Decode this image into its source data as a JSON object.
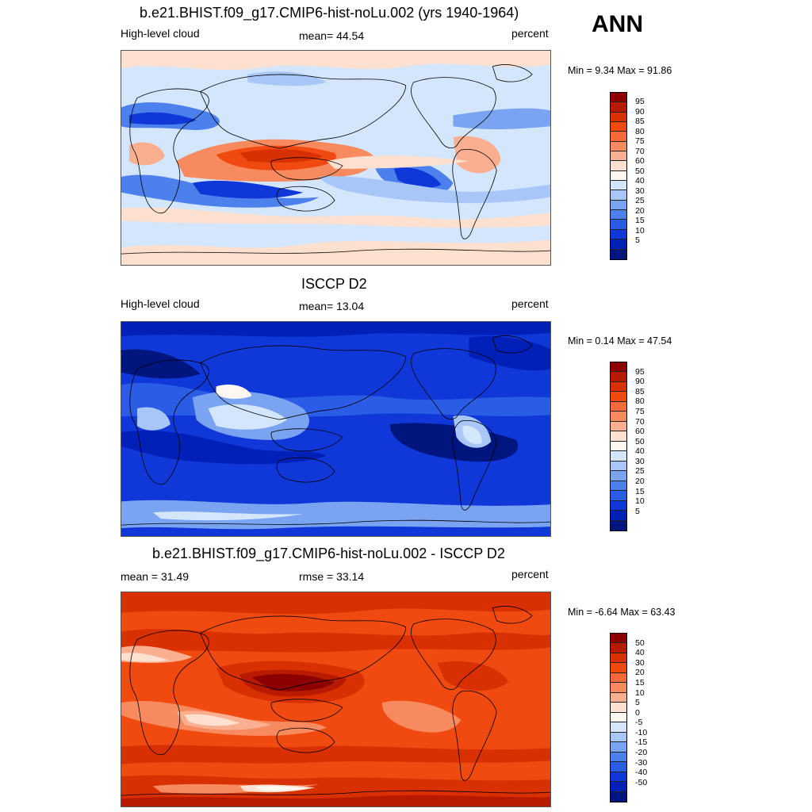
{
  "season": "ANN",
  "panels": [
    {
      "title": "b.e21.BHIST.f09_g17.CMIP6-hist-noLu.002 (yrs 1940-1964)",
      "left": "High-level cloud",
      "center": "mean=  44.54",
      "right": "percent",
      "minmax": "Min =   9.34 Max =  91.86",
      "levels": [
        "95",
        "90",
        "85",
        "80",
        "75",
        "70",
        "60",
        "50",
        "40",
        "30",
        "25",
        "20",
        "15",
        "10",
        "5"
      ],
      "colors": [
        "#8c0000",
        "#b81a00",
        "#d83000",
        "#f04a10",
        "#f56a38",
        "#f88a60",
        "#fab090",
        "#fde0d0",
        "#fff8f0",
        "#d4e6fb",
        "#a8c6f7",
        "#7aa4f2",
        "#4c80ec",
        "#2a5ce6",
        "#1038d8",
        "#0020b8",
        "#00157e"
      ]
    },
    {
      "title": "ISCCP D2",
      "left": "High-level cloud",
      "center": "mean=  13.04",
      "right": "percent",
      "minmax": "Min =   0.14 Max =  47.54",
      "levels": [
        "95",
        "90",
        "85",
        "80",
        "75",
        "70",
        "60",
        "50",
        "40",
        "30",
        "25",
        "20",
        "15",
        "10",
        "5"
      ],
      "colors": [
        "#8c0000",
        "#b81a00",
        "#d83000",
        "#f04a10",
        "#f56a38",
        "#f88a60",
        "#fab090",
        "#fde0d0",
        "#fff8f0",
        "#d4e6fb",
        "#a8c6f7",
        "#7aa4f2",
        "#4c80ec",
        "#2a5ce6",
        "#1038d8",
        "#0020b8",
        "#00157e"
      ]
    },
    {
      "title": "b.e21.BHIST.f09_g17.CMIP6-hist-noLu.002 - ISCCP D2",
      "left": "mean =  31.49",
      "center": "rmse =  33.14",
      "right": "percent",
      "minmax": "Min =  -6.64 Max =  63.43",
      "levels": [
        "50",
        "40",
        "30",
        "20",
        "15",
        "10",
        "5",
        "0",
        "-5",
        "-10",
        "-15",
        "-20",
        "-30",
        "-40",
        "-50"
      ],
      "colors": [
        "#8c0000",
        "#b81a00",
        "#d83000",
        "#f04a10",
        "#f56a38",
        "#f88a60",
        "#fab090",
        "#fde0d0",
        "#fff8f0",
        "#d4e6fb",
        "#a8c6f7",
        "#7aa4f2",
        "#4c80ec",
        "#2a5ce6",
        "#1038d8",
        "#0020b8",
        "#00157e"
      ]
    }
  ]
}
